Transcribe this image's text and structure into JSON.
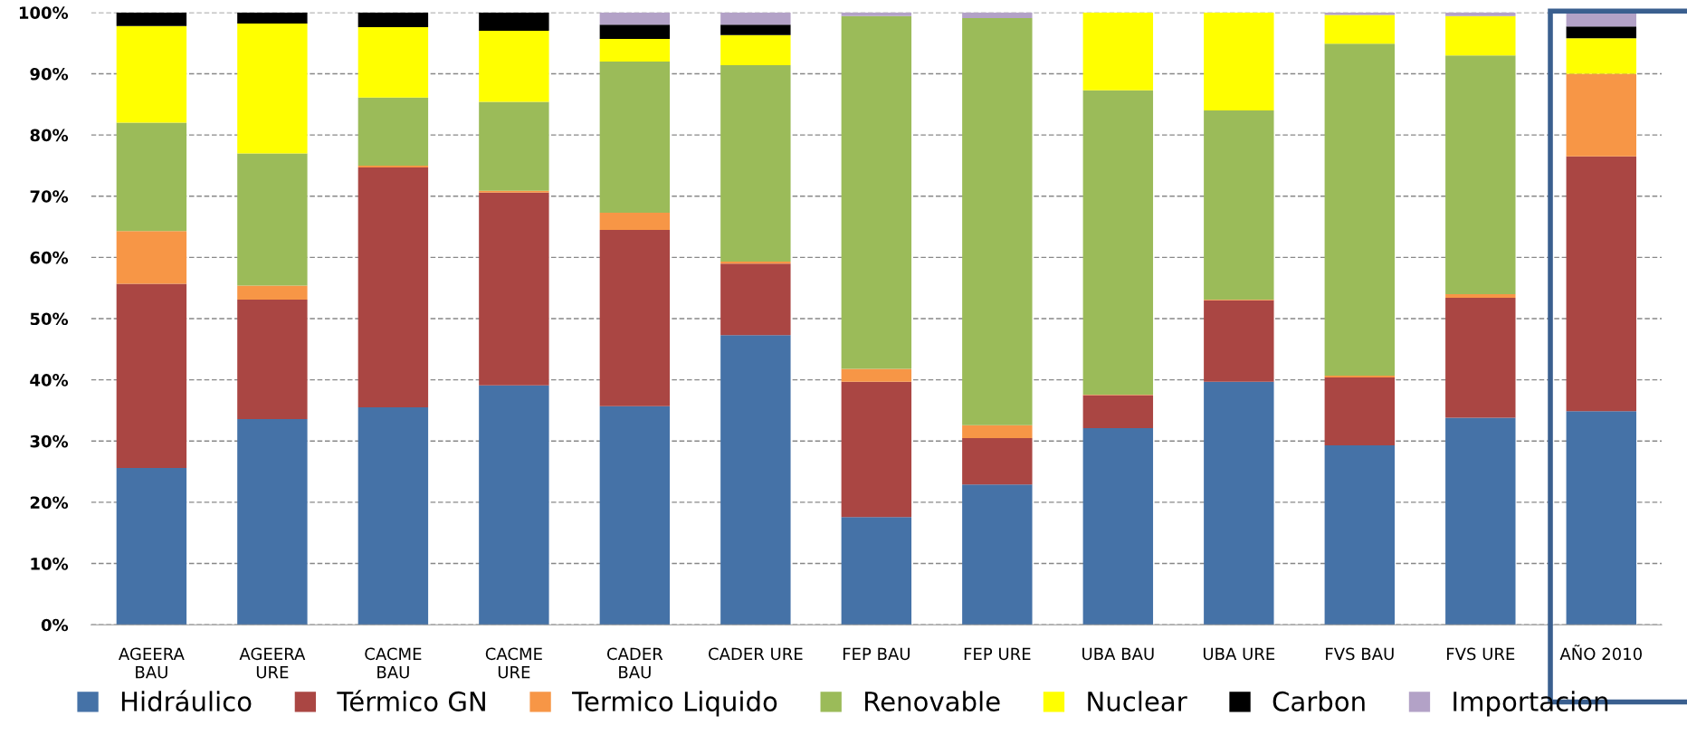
{
  "chart_data": {
    "type": "bar",
    "stacked": true,
    "categories": [
      "AGEERA\nBAU",
      "AGEERA\nURE",
      "CACME\nBAU",
      "CACME\nURE",
      "CADER\nBAU",
      "CADER URE",
      "FEP BAU",
      "FEP URE",
      "UBA BAU",
      "UBA URE",
      "FVS BAU",
      "FVS URE",
      "AÑO 2010"
    ],
    "series": [
      {
        "name": "Hidráulico",
        "color": "#4572a7",
        "values": [
          25.6,
          33.6,
          35.5,
          39.1,
          35.7,
          47.3,
          17.6,
          22.9,
          32.1,
          39.7,
          29.3,
          33.8,
          34.9
        ]
      },
      {
        "name": "Térmico GN",
        "color": "#aa4643",
        "values": [
          30.1,
          19.5,
          39.2,
          31.5,
          28.8,
          11.7,
          22.1,
          7.6,
          5.4,
          13.3,
          11.1,
          19.6,
          41.6
        ]
      },
      {
        "name": "Termico Liquido",
        "color": "#f79646",
        "values": [
          8.6,
          2.3,
          0.3,
          0.3,
          2.8,
          0.3,
          2.1,
          2.1,
          0.1,
          0.1,
          0.3,
          0.6,
          13.5
        ]
      },
      {
        "name": "Renovable",
        "color": "#9bbb59",
        "values": [
          17.7,
          21.6,
          11.1,
          14.5,
          24.7,
          32.1,
          57.6,
          66.5,
          49.7,
          30.9,
          54.2,
          39.0,
          null
        ]
      },
      {
        "name": "Nuclear",
        "color": "#ffff00",
        "values": [
          15.8,
          21.2,
          11.5,
          11.6,
          3.7,
          4.9,
          0,
          0,
          12.7,
          16.0,
          4.7,
          6.4,
          5.8
        ]
      },
      {
        "name": "Carbon",
        "color": "#000000",
        "values": [
          2.2,
          1.8,
          2.4,
          3.0,
          2.3,
          1.7,
          0,
          0,
          0,
          0,
          0,
          0,
          1.9
        ]
      },
      {
        "name": "Importacion",
        "color": "#b3a2c7",
        "values": [
          0,
          0,
          0,
          0,
          2.0,
          2.0,
          0.6,
          0.9,
          0,
          0,
          0.4,
          0.6,
          2.2
        ]
      }
    ],
    "ylim": [
      0,
      100
    ],
    "yticks": [
      {
        "value": 0,
        "label": "0%"
      },
      {
        "value": 10,
        "label": "10%"
      },
      {
        "value": 20,
        "label": "20%"
      },
      {
        "value": 30,
        "label": "30%"
      },
      {
        "value": 40,
        "label": "40%"
      },
      {
        "value": 50,
        "label": "50%"
      },
      {
        "value": 60,
        "label": "60%"
      },
      {
        "value": 70,
        "label": "70%"
      },
      {
        "value": 80,
        "label": "80%"
      },
      {
        "value": 90,
        "label": "90%"
      },
      {
        "value": 100,
        "label": "100%"
      }
    ],
    "grid": "y",
    "legend": "bottom"
  }
}
